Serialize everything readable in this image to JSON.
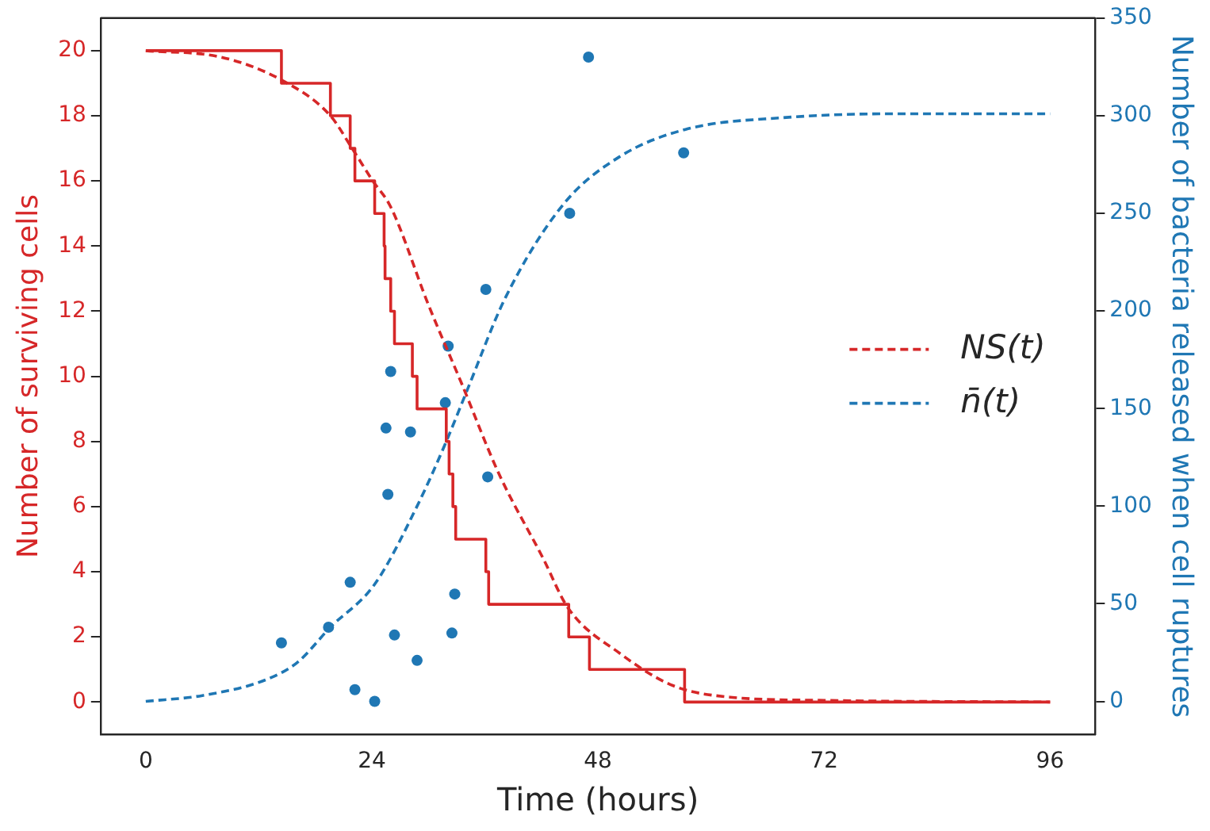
{
  "chart_data": {
    "type": "line",
    "xlabel": "Time (hours)",
    "ylabel": "Number of surviving cells",
    "y2label": "Number of bacteria released when cell ruptures",
    "xlim": [
      -4.8,
      100.8
    ],
    "xticks": [
      0,
      24,
      48,
      72,
      96
    ],
    "ylim": [
      -1,
      21
    ],
    "yticks": [
      0,
      2,
      4,
      6,
      8,
      10,
      12,
      14,
      16,
      18,
      20
    ],
    "y2lim": [
      -17,
      350
    ],
    "y2ticks": [
      0,
      50,
      100,
      150,
      200,
      250,
      300,
      350
    ],
    "legend": "right",
    "series": [
      {
        "type": "step",
        "color": "#d62728",
        "line_style": "solid",
        "marker": "none",
        "x": [
          0,
          14.4,
          19.6,
          21.7,
          22.2,
          24.3,
          25.3,
          25.4,
          26.0,
          26.4,
          28.3,
          28.8,
          31.9,
          32.2,
          32.6,
          32.9,
          36.1,
          36.4,
          44.9,
          47.1,
          57.2,
          96
        ],
        "values": [
          20,
          19,
          18,
          17,
          16,
          15,
          14,
          13,
          12,
          11,
          10,
          9,
          8,
          7,
          6,
          5,
          4,
          3,
          2,
          1,
          0,
          0
        ]
      },
      {
        "name": "NS(t)",
        "color": "#d62728",
        "line_style": "dashed",
        "marker": "none",
        "x": [
          0,
          8,
          14.4,
          19.6,
          21.9,
          24.1,
          26,
          30,
          33.5,
          37.5,
          42.2,
          44.8,
          50.3,
          56,
          62,
          72,
          96
        ],
        "values": [
          20,
          19.8,
          19.1,
          18.0,
          17.0,
          16.0,
          15.2,
          12.2,
          9.8,
          7.0,
          4.4,
          2.9,
          1.5,
          0.5,
          0.15,
          0.05,
          0
        ]
      },
      {
        "name": "n̄(t)",
        "color": "#1f77b4",
        "line_style": "dashed",
        "marker": "none",
        "axis": "y2",
        "x": [
          0,
          6,
          12.7,
          16.1,
          19.6,
          24.3,
          28.8,
          31.8,
          34,
          38.2,
          44.4,
          50.3,
          57.3,
          67.7,
          80,
          96
        ],
        "values": [
          0,
          3,
          11,
          20,
          38,
          60,
          100,
          132,
          158,
          207,
          255,
          279,
          293,
          299,
          301,
          301
        ]
      },
      {
        "type": "scatter",
        "color": "#1f77b4",
        "marker": "circle",
        "axis": "y2",
        "x": [
          14.4,
          19.4,
          21.7,
          22.2,
          24.3,
          25.5,
          25.7,
          26.0,
          26.4,
          28.1,
          28.8,
          31.8,
          32.1,
          32.5,
          32.8,
          36.1,
          36.3,
          45.0,
          47.0,
          57.1
        ],
        "values": [
          30,
          38,
          61,
          6,
          0,
          140,
          106,
          169,
          34,
          138,
          21,
          153,
          182,
          35,
          55,
          211,
          115,
          250,
          330,
          281
        ]
      }
    ]
  }
}
